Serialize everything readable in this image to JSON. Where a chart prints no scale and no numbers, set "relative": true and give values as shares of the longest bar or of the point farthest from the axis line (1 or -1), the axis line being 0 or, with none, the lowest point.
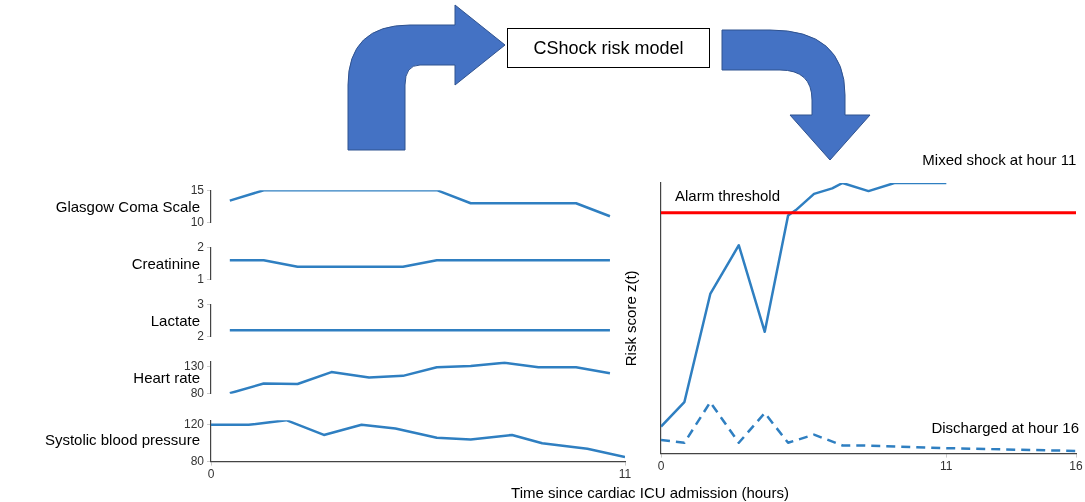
{
  "chart_data": [
    {
      "type": "other",
      "title": "CShock risk model"
    },
    {
      "type": "line",
      "ylabel": "Glasgow Coma Scale",
      "xlim": [
        0,
        11
      ],
      "ylim": [
        10,
        15
      ],
      "yticks": [
        10,
        15
      ],
      "tick_labels": "y",
      "marker": "none",
      "series": [
        {
          "color": "#2f7fc1",
          "x": [
            0.5,
            1.4,
            6.0,
            6.9,
            9.7,
            10.6
          ],
          "values": [
            13.4,
            15,
            15,
            13,
            13,
            11
          ]
        }
      ]
    },
    {
      "type": "line",
      "ylabel": "Creatinine",
      "xlim": [
        0,
        11
      ],
      "ylim": [
        1,
        2
      ],
      "yticks": [
        1,
        2
      ],
      "tick_labels": "y",
      "marker": "none",
      "series": [
        {
          "color": "#2f7fc1",
          "x": [
            0.5,
            1.4,
            2.3,
            5.1,
            6.0,
            10.6
          ],
          "values": [
            1.6,
            1.6,
            1.4,
            1.4,
            1.6,
            1.6
          ]
        }
      ]
    },
    {
      "type": "line",
      "ylabel": "Lactate",
      "xlim": [
        0,
        11
      ],
      "ylim": [
        2,
        3
      ],
      "yticks": [
        2,
        3
      ],
      "tick_labels": "y",
      "marker": "none",
      "series": [
        {
          "color": "#2f7fc1",
          "x": [
            0.5,
            10.6
          ],
          "values": [
            2.2,
            2.2
          ]
        }
      ]
    },
    {
      "type": "line",
      "ylabel": "Heart rate",
      "xlim": [
        0,
        11
      ],
      "ylim": [
        80,
        140
      ],
      "yticks": [
        80,
        130
      ],
      "tick_labels": "y",
      "marker": "none",
      "series": [
        {
          "color": "#2f7fc1",
          "x": [
            0.5,
            1.4,
            2.3,
            3.2,
            4.2,
            5.1,
            6.0,
            6.9,
            7.8,
            8.7,
            9.7,
            10.6
          ],
          "values": [
            81,
            99,
            98,
            120,
            110,
            113,
            129,
            131,
            137,
            129,
            129,
            118
          ]
        }
      ]
    },
    {
      "type": "line",
      "ylabel": "Systolic blood pressure",
      "xlabel": "Time since cardiac ICU admission (hours)",
      "xlim": [
        0,
        11
      ],
      "xticks": [
        0,
        11
      ],
      "ylim": [
        80,
        125
      ],
      "yticks": [
        80,
        120
      ],
      "marker": "none",
      "series": [
        {
          "color": "#2f7fc1",
          "x": [
            0,
            1,
            2,
            3,
            4,
            4.9,
            6,
            6.9,
            8,
            8.8,
            10,
            11
          ],
          "values": [
            120,
            120,
            125,
            109,
            120,
            116,
            106,
            104,
            109,
            100,
            94,
            85
          ]
        }
      ]
    },
    {
      "type": "line",
      "relative": true,
      "ylabel": "Risk score z(t)",
      "xlim": [
        0,
        16
      ],
      "xticks": [
        0,
        11,
        16
      ],
      "marker": "none",
      "ref_lines": [
        {
          "axis": "y",
          "value": 0.89,
          "label": "Alarm threshold",
          "color": "#ff0000"
        }
      ],
      "annotations": [
        {
          "text": "Mixed shock at hour 11",
          "x": 11,
          "y": 1.0
        },
        {
          "text": "Discharged at hour 16",
          "x": 16,
          "y": 0.01
        }
      ],
      "series": [
        {
          "color": "#2f7fc1",
          "line_style": "solid",
          "x": [
            0,
            0.9,
            1.9,
            3,
            4,
            4.9,
            5.2,
            5.9,
            6.6,
            7,
            8,
            9,
            10,
            11
          ],
          "values": [
            0.1,
            0.19,
            0.59,
            0.77,
            0.45,
            0.88,
            0.9,
            0.96,
            0.98,
            1.0,
            0.97,
            1.0,
            1.0,
            1.0
          ]
        },
        {
          "color": "#2f7fc1",
          "line_style": "dashed",
          "x": [
            0,
            0.9,
            1.9,
            3,
            4,
            4.9,
            5.9,
            7,
            7.8,
            11,
            16
          ],
          "values": [
            0.05,
            0.04,
            0.19,
            0.04,
            0.15,
            0.04,
            0.07,
            0.03,
            0.03,
            0.02,
            0.01
          ]
        }
      ]
    }
  ]
}
